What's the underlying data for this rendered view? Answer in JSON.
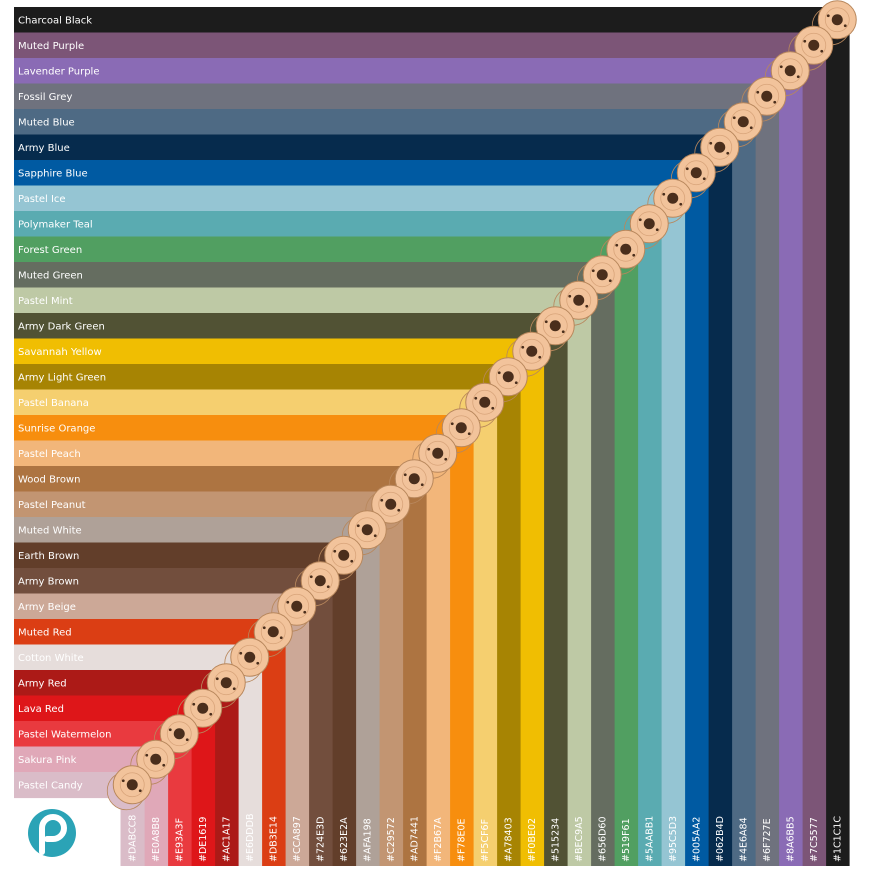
{
  "colors": [
    {
      "name": "Charcoal Black",
      "hex": "#1C1C1C"
    },
    {
      "name": "Muted Purple",
      "hex": "#7C5577"
    },
    {
      "name": "Lavender Purple",
      "hex": "#8A6BB5"
    },
    {
      "name": "Fossil Grey",
      "hex": "#6F727E"
    },
    {
      "name": "Muted Blue",
      "hex": "#4E6A84"
    },
    {
      "name": "Army Blue",
      "hex": "#062B4D"
    },
    {
      "name": "Sapphire Blue",
      "hex": "#005AA2"
    },
    {
      "name": "Pastel Ice",
      "hex": "#95C5D3"
    },
    {
      "name": "Polymaker Teal",
      "hex": "#5AABB1"
    },
    {
      "name": "Forest Green",
      "hex": "#519F61"
    },
    {
      "name": "Muted Green",
      "hex": "#656D60"
    },
    {
      "name": "Pastel Mint",
      "hex": "#BEC9A5"
    },
    {
      "name": "Army Dark Green",
      "hex": "#515234"
    },
    {
      "name": "Savannah Yellow",
      "hex": "#F0BE02"
    },
    {
      "name": "Army Light Green",
      "hex": "#A78403"
    },
    {
      "name": "Pastel Banana",
      "hex": "#F5CF6F"
    },
    {
      "name": "Sunrise Orange",
      "hex": "#F78E0E"
    },
    {
      "name": "Pastel Peach",
      "hex": "#F2B67A"
    },
    {
      "name": "Wood Brown",
      "hex": "#AD7441"
    },
    {
      "name": "Pastel Peanut",
      "hex": "#C29572"
    },
    {
      "name": "Muted White",
      "hex": "#AFA198"
    },
    {
      "name": "Earth Brown",
      "hex": "#623E2A"
    },
    {
      "name": "Army Brown",
      "hex": "#724E3D"
    },
    {
      "name": "Army Beige",
      "hex": "#CCA897"
    },
    {
      "name": "Muted Red",
      "hex": "#DB3E14"
    },
    {
      "name": "Cotton White",
      "hex": "#E6DDDB"
    },
    {
      "name": "Army Red",
      "hex": "#AC1A17"
    },
    {
      "name": "Lava Red",
      "hex": "#DE1619"
    },
    {
      "name": "Pastel Watermelon",
      "hex": "#E93A3F"
    },
    {
      "name": "Sakura Pink",
      "hex": "#E0A8B8"
    },
    {
      "name": "Pastel Candy",
      "hex": "#DABCC8"
    }
  ],
  "logo": {
    "icon": "polymaker-logo-icon",
    "color": "#2BA3B6"
  }
}
